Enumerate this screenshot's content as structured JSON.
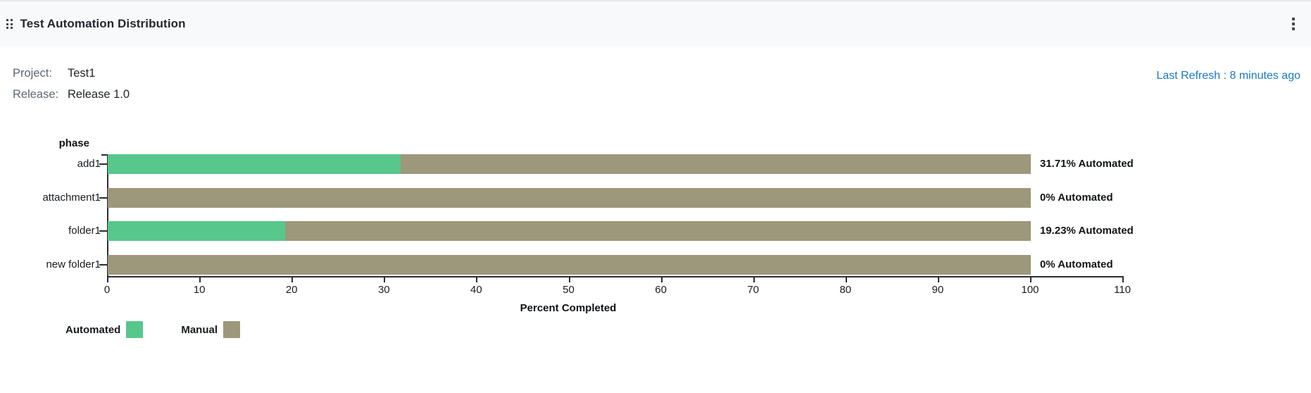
{
  "widget": {
    "title": "Test Automation Distribution"
  },
  "info": {
    "project_label": "Project:",
    "project_value": "Test1",
    "release_label": "Release:",
    "release_value": "Release 1.0",
    "last_refresh": "Last Refresh : 8 minutes ago"
  },
  "colors": {
    "automated_green": "#57c78c",
    "manual_olive": "#9d977b",
    "refresh_link_blue": "#1879c6",
    "header_bg": "#f8f9fa"
  },
  "chart_data": {
    "type": "bar",
    "orientation": "horizontal",
    "stacked": true,
    "ylabel": "phase",
    "xlabel": "Percent Completed",
    "categories": [
      "add1",
      "attachment1",
      "folder1",
      "new folder1"
    ],
    "series": [
      {
        "name": "Automated",
        "color": "#57c78c",
        "values": [
          31.71,
          0,
          19.23,
          0
        ]
      },
      {
        "name": "Manual",
        "color": "#9d977b",
        "values": [
          68.29,
          100,
          80.77,
          100
        ]
      }
    ],
    "bar_labels": [
      "31.71% Automated",
      "0% Automated",
      "19.23% Automated",
      "0% Automated"
    ],
    "xlim": [
      0,
      110
    ],
    "xticks": [
      0,
      10,
      20,
      30,
      40,
      50,
      60,
      70,
      80,
      90,
      100,
      110
    ],
    "grid": false,
    "legend": [
      {
        "label": "Automated",
        "color": "#57c78c"
      },
      {
        "label": "Manual",
        "color": "#9d977b"
      }
    ],
    "legend_position": "bottom-left"
  }
}
